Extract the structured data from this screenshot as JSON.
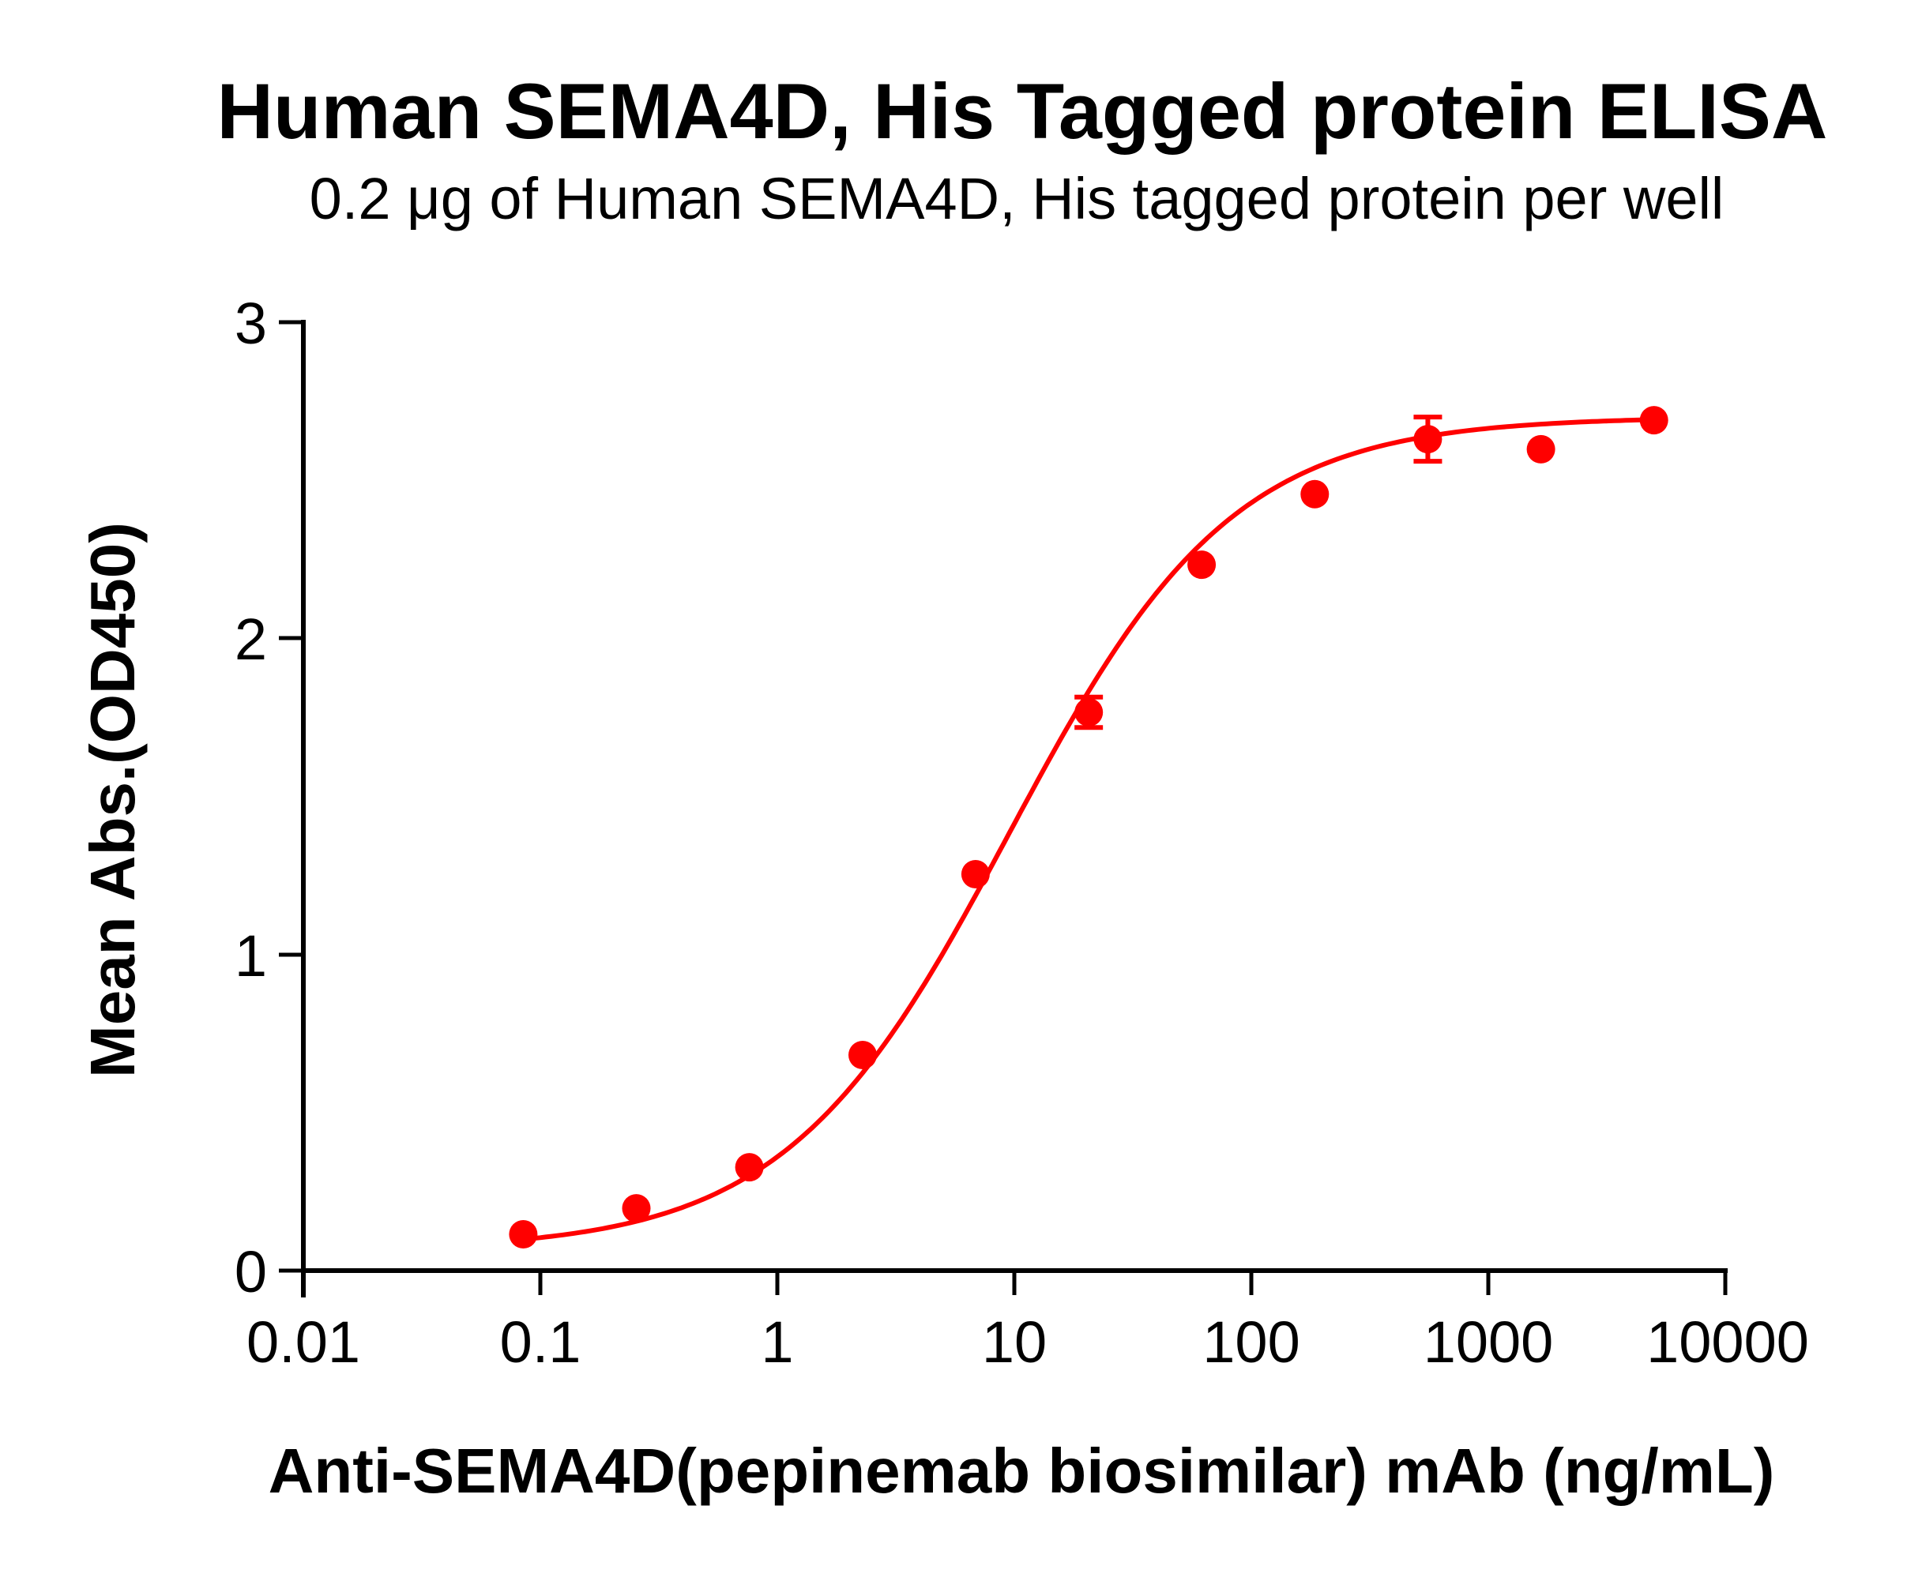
{
  "chart": {
    "title": "Human SEMA4D, His Tagged protein ELISA",
    "subtitle": "0.2 μg of Human SEMA4D, His tagged protein per well",
    "xlabel": "Anti-SEMA4D(pepinemab biosimilar) mAb (ng/mL)",
    "ylabel": "Mean Abs.(OD450)",
    "series_color": "#ff0000",
    "x_ticks": [
      "0.01",
      "0.1",
      "1",
      "10",
      "100",
      "1000",
      "10000"
    ],
    "y_ticks": [
      "0",
      "1",
      "2",
      "3"
    ]
  },
  "chart_data": {
    "type": "scatter",
    "title": "Human SEMA4D, His Tagged protein ELISA",
    "subtitle": "0.2 μg of Human SEMA4D, His tagged protein per well",
    "xlabel": "Anti-SEMA4D(pepinemab biosimilar) mAb (ng/mL)",
    "ylabel": "Mean Abs.(OD450)",
    "xscale": "log",
    "xlim": [
      0.01,
      10000
    ],
    "ylim": [
      0,
      3
    ],
    "x_ticks": [
      0.01,
      0.1,
      1,
      10,
      100,
      1000,
      10000
    ],
    "y_ticks": [
      0,
      1,
      2,
      3
    ],
    "grid": false,
    "legend": "none",
    "series": [
      {
        "name": "Anti-SEMA4D (pepinemab biosimilar) mAb",
        "color": "#ff0000",
        "marker": "circle",
        "x": [
          0.0847,
          0.254,
          0.762,
          2.29,
          6.86,
          20.6,
          61.7,
          185.2,
          555.6,
          1666.7,
          5000
        ],
        "y": [
          0.115,
          0.197,
          0.327,
          0.682,
          1.254,
          1.766,
          2.233,
          2.456,
          2.63,
          2.598,
          2.69
        ],
        "error": [
          0,
          0,
          0,
          0,
          0,
          0.048,
          0,
          0,
          0.07,
          0,
          0
        ]
      }
    ],
    "fit": {
      "model": "4PL",
      "bottom": 0.065,
      "top": 2.7,
      "ec50": 9.5,
      "hill": 0.92,
      "color": "#ff0000"
    }
  }
}
